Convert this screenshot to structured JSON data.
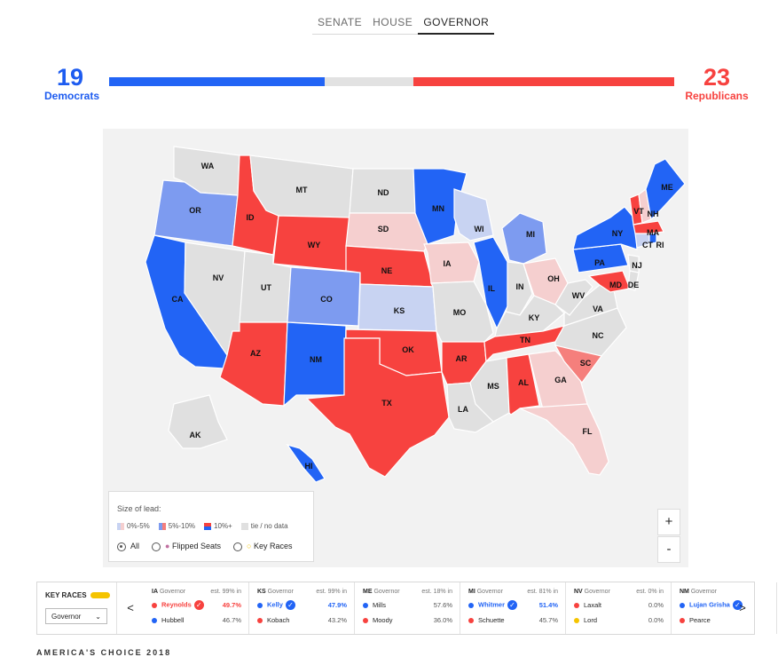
{
  "tabs": [
    "SENATE",
    "HOUSE",
    "GOVERNOR"
  ],
  "active_tab": 2,
  "tally": {
    "dem_count": "19",
    "dem_label": "Democrats",
    "rep_count": "23",
    "rep_label": "Republicans",
    "dem_share": 0.3807,
    "undecided_share": 0.1586,
    "rep_share": 0.4608
  },
  "colors": {
    "dem_strong": "#2264f5",
    "dem_mid": "#7d9bf0",
    "dem_light": "#c8d3f2",
    "rep_strong": "#f7423f",
    "rep_mid": "#f57f7c",
    "rep_light": "#f5cfcf",
    "no_data": "#e0e0e0",
    "accent": "#f5c400"
  },
  "map": {
    "states": [
      {
        "abbr": "WA",
        "category": "none"
      },
      {
        "abbr": "OR",
        "category": "dem_mid"
      },
      {
        "abbr": "CA",
        "category": "dem_strong"
      },
      {
        "abbr": "NV",
        "category": "none"
      },
      {
        "abbr": "ID",
        "category": "rep_strong"
      },
      {
        "abbr": "MT",
        "category": "none"
      },
      {
        "abbr": "WY",
        "category": "rep_strong"
      },
      {
        "abbr": "UT",
        "category": "none"
      },
      {
        "abbr": "AZ",
        "category": "rep_strong"
      },
      {
        "abbr": "CO",
        "category": "dem_mid"
      },
      {
        "abbr": "NM",
        "category": "dem_strong"
      },
      {
        "abbr": "ND",
        "category": "none"
      },
      {
        "abbr": "SD",
        "category": "rep_light"
      },
      {
        "abbr": "NE",
        "category": "rep_strong"
      },
      {
        "abbr": "KS",
        "category": "dem_light"
      },
      {
        "abbr": "OK",
        "category": "rep_strong"
      },
      {
        "abbr": "TX",
        "category": "rep_strong"
      },
      {
        "abbr": "MN",
        "category": "dem_strong"
      },
      {
        "abbr": "IA",
        "category": "rep_light"
      },
      {
        "abbr": "MO",
        "category": "none"
      },
      {
        "abbr": "AR",
        "category": "rep_strong"
      },
      {
        "abbr": "LA",
        "category": "none"
      },
      {
        "abbr": "WI",
        "category": "dem_light"
      },
      {
        "abbr": "IL",
        "category": "dem_strong"
      },
      {
        "abbr": "MI",
        "category": "dem_mid"
      },
      {
        "abbr": "IN",
        "category": "none"
      },
      {
        "abbr": "OH",
        "category": "rep_light"
      },
      {
        "abbr": "KY",
        "category": "none"
      },
      {
        "abbr": "TN",
        "category": "rep_strong"
      },
      {
        "abbr": "MS",
        "category": "none"
      },
      {
        "abbr": "AL",
        "category": "rep_strong"
      },
      {
        "abbr": "GA",
        "category": "rep_light"
      },
      {
        "abbr": "FL",
        "category": "rep_light"
      },
      {
        "abbr": "SC",
        "category": "rep_mid"
      },
      {
        "abbr": "NC",
        "category": "none"
      },
      {
        "abbr": "VA",
        "category": "none"
      },
      {
        "abbr": "WV",
        "category": "none"
      },
      {
        "abbr": "PA",
        "category": "dem_strong"
      },
      {
        "abbr": "MD",
        "category": "rep_strong"
      },
      {
        "abbr": "DE",
        "category": "none"
      },
      {
        "abbr": "NJ",
        "category": "none"
      },
      {
        "abbr": "NY",
        "category": "dem_strong"
      },
      {
        "abbr": "CT",
        "category": "dem_light"
      },
      {
        "abbr": "RI",
        "category": "dem_strong"
      },
      {
        "abbr": "MA",
        "category": "rep_strong"
      },
      {
        "abbr": "VT",
        "category": "rep_strong"
      },
      {
        "abbr": "NH",
        "category": "rep_light"
      },
      {
        "abbr": "ME",
        "category": "dem_strong"
      },
      {
        "abbr": "AK",
        "category": "none"
      },
      {
        "abbr": "HI",
        "category": "dem_strong"
      }
    ]
  },
  "legend": {
    "title": "Size of lead:",
    "items": [
      "0%-5%",
      "5%-10%",
      "10%+",
      "tie / no data"
    ],
    "options": [
      "All",
      "Flipped Seats",
      "Key Races"
    ]
  },
  "zoom": {
    "in": "+",
    "out": "-"
  },
  "races": {
    "label": "KEY RACES",
    "select": "Governor",
    "prev": "<",
    "next": ">",
    "cards": [
      {
        "state": "IA",
        "office": "Governor",
        "reporting": "est. 99% in",
        "cands": [
          {
            "name": "Reynolds",
            "pct": "49.7%",
            "party": "rep",
            "win": true
          },
          {
            "name": "Hubbell",
            "pct": "46.7%",
            "party": "dem",
            "win": false
          }
        ]
      },
      {
        "state": "KS",
        "office": "Governor",
        "reporting": "est. 99% in",
        "cands": [
          {
            "name": "Kelly",
            "pct": "47.9%",
            "party": "dem",
            "win": true
          },
          {
            "name": "Kobach",
            "pct": "43.2%",
            "party": "rep",
            "win": false
          }
        ]
      },
      {
        "state": "ME",
        "office": "Governor",
        "reporting": "est. 18% in",
        "cands": [
          {
            "name": "Mills",
            "pct": "57.6%",
            "party": "dem",
            "win": false
          },
          {
            "name": "Moody",
            "pct": "36.0%",
            "party": "rep",
            "win": false
          }
        ]
      },
      {
        "state": "MI",
        "office": "Governor",
        "reporting": "est. 81% in",
        "cands": [
          {
            "name": "Whitmer",
            "pct": "51.4%",
            "party": "dem",
            "win": true
          },
          {
            "name": "Schuette",
            "pct": "45.7%",
            "party": "rep",
            "win": false
          }
        ]
      },
      {
        "state": "NV",
        "office": "Governor",
        "reporting": "est. 0% in",
        "cands": [
          {
            "name": "Laxalt",
            "pct": "0.0%",
            "party": "rep",
            "win": false
          },
          {
            "name": "Lord",
            "pct": "0.0%",
            "party": "other",
            "win": false
          }
        ]
      },
      {
        "state": "NM",
        "office": "Governor",
        "reporting": "",
        "cands": [
          {
            "name": "Lujan Grisha",
            "pct": "",
            "party": "dem",
            "win": true
          },
          {
            "name": "Pearce",
            "pct": "",
            "party": "rep",
            "win": false
          }
        ]
      }
    ]
  },
  "footer": "AMERICA'S CHOICE 2018"
}
